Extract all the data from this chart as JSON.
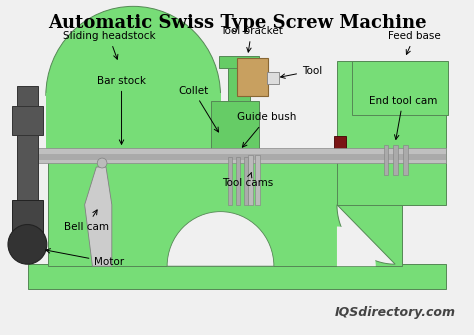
{
  "title": "Automatic Swiss Type Screw Machine",
  "title_fontsize": 13,
  "bg_color": "#f0f0f0",
  "green_light": "#77dd77",
  "green_mid": "#66cc66",
  "gray_bar": "#b0b0b0",
  "gray_dark": "#555555",
  "gray_side": "#888888",
  "tan": "#c8a060",
  "dark_red": "#7a1515",
  "label_fontsize": 7.5,
  "watermark": "IQSdirectory.com",
  "labels": {
    "sliding_headstock": "Sliding headstock",
    "bar_stock": "Bar stock",
    "collet": "Collet",
    "tool_bracket": "Tool bracket",
    "tool": "Tool",
    "guide_bush": "Guide bush",
    "feed_base": "Feed base",
    "end_tool_cam": "End tool cam",
    "bell_cam": "Bell cam",
    "tool_cams": "Tool cams",
    "motor": "Motor"
  }
}
